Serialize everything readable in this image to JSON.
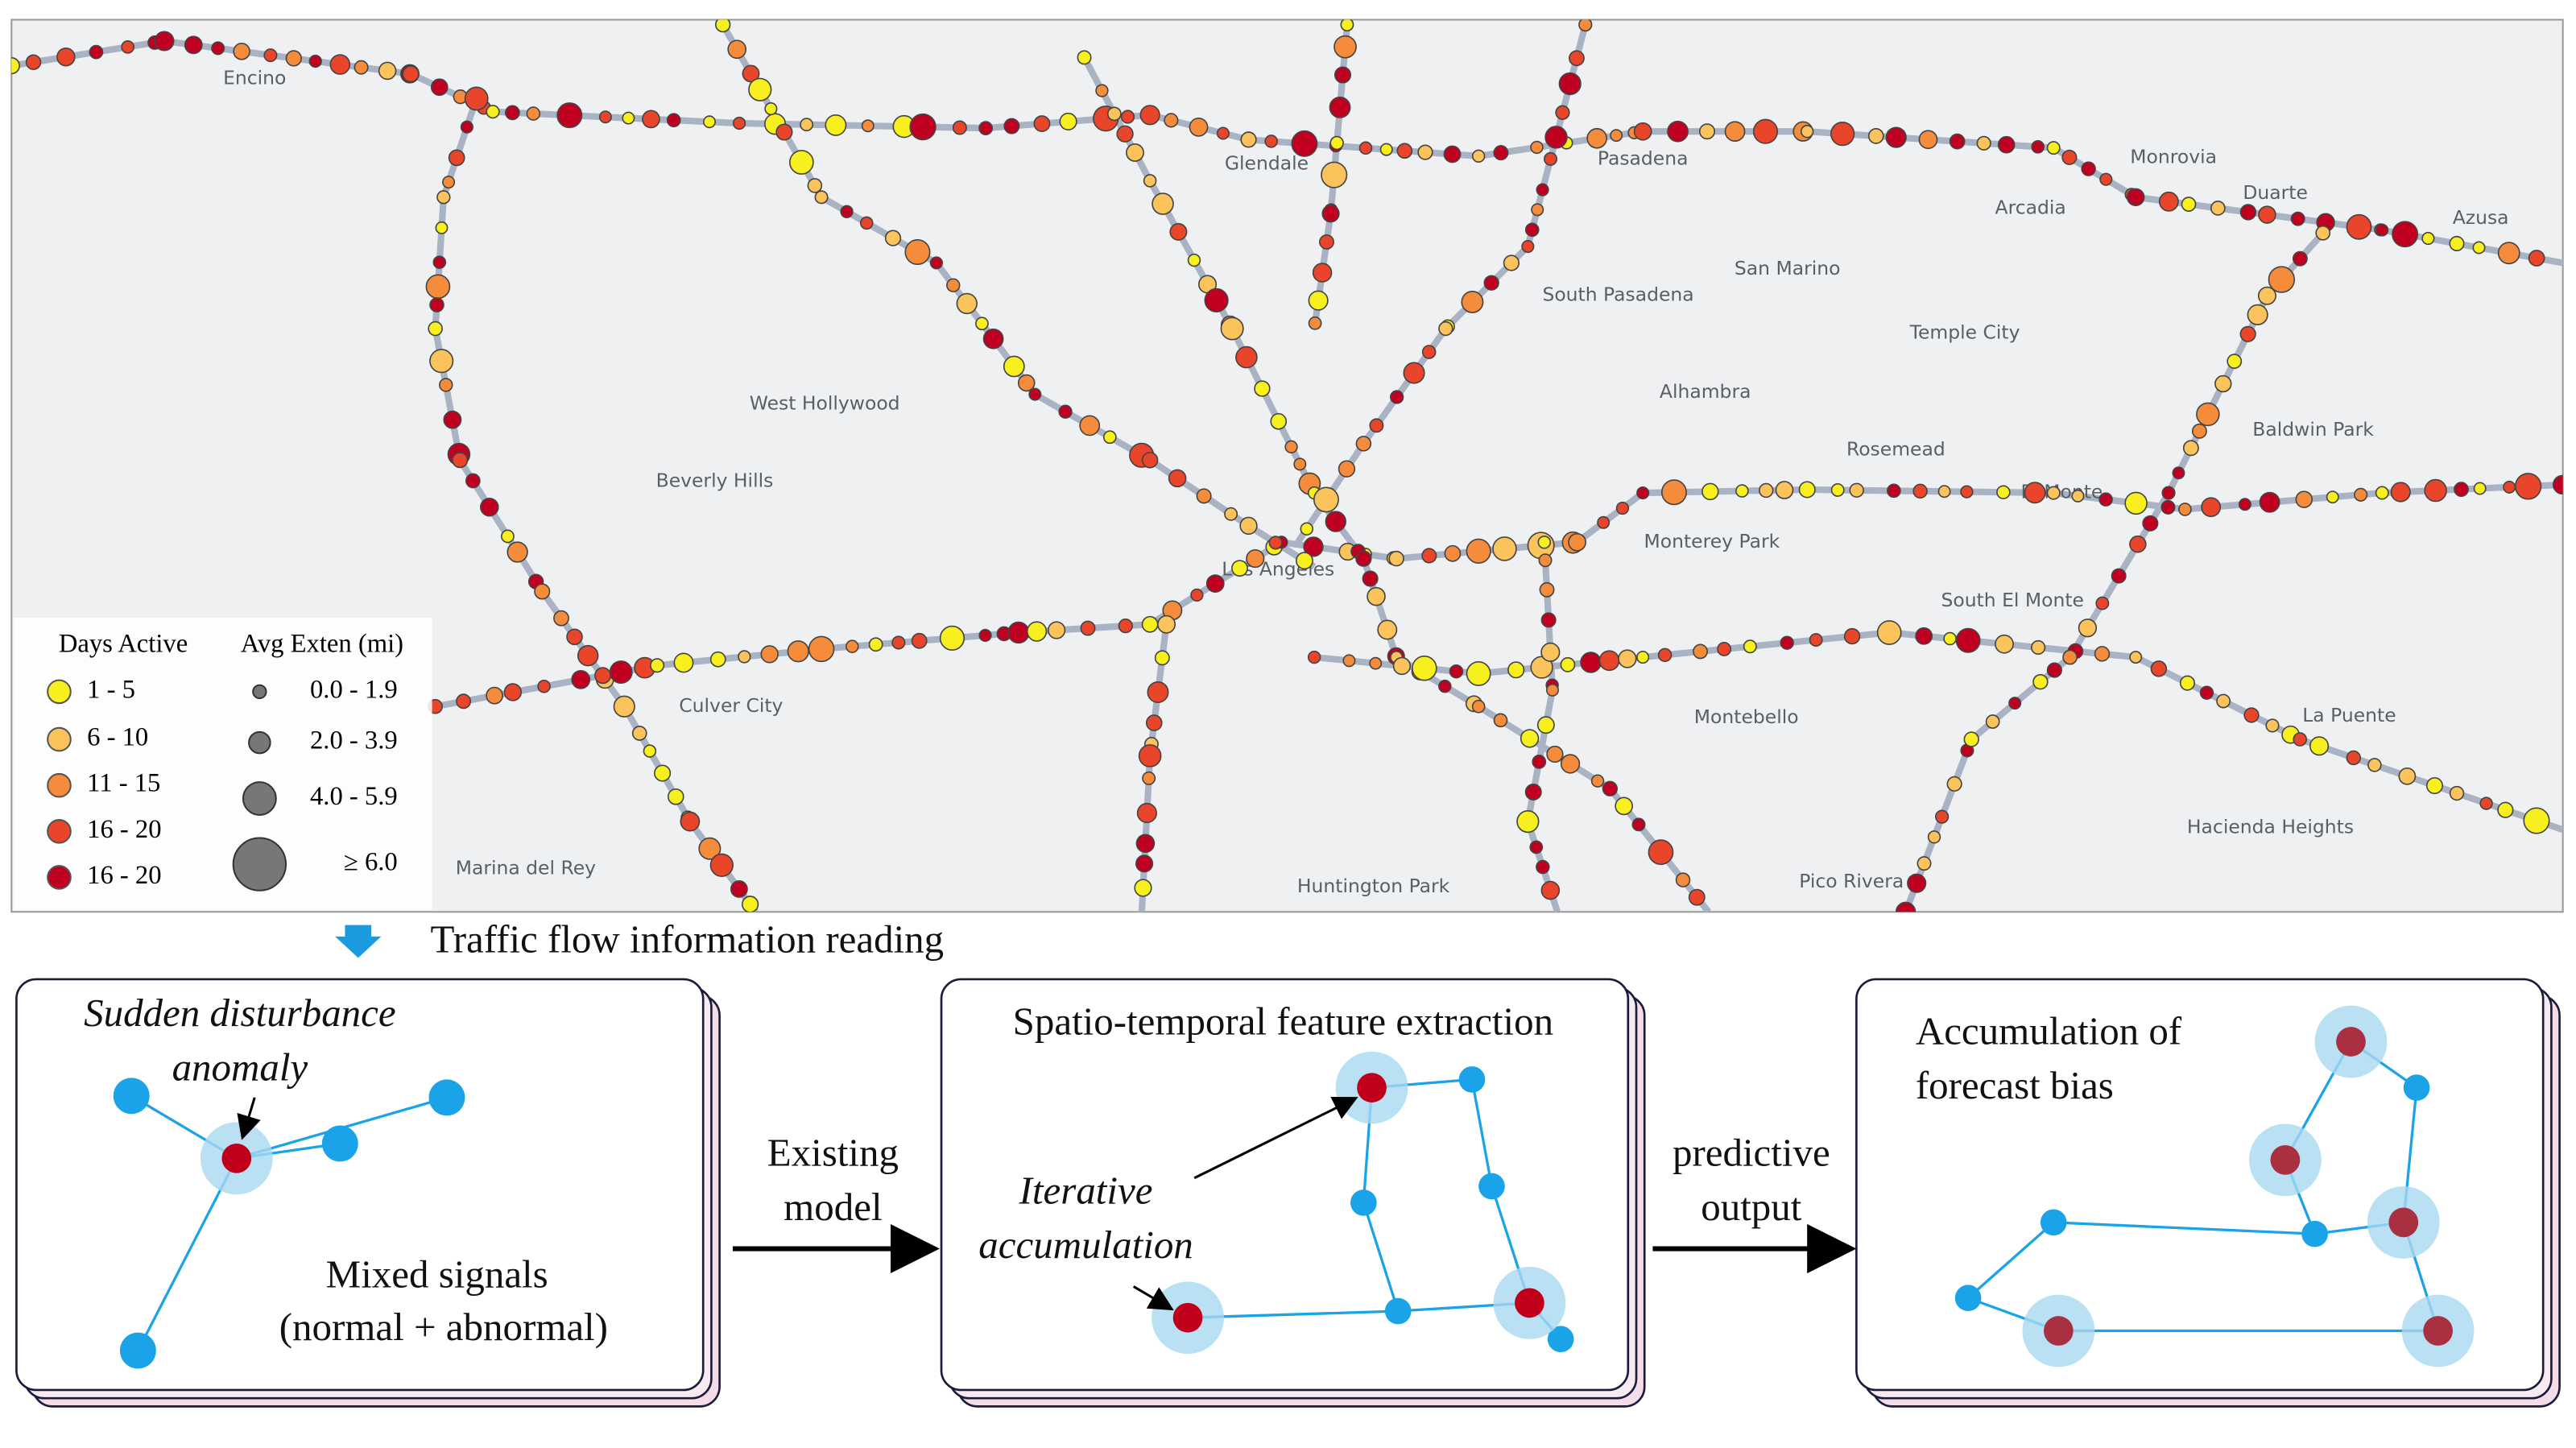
{
  "map": {
    "places": [
      "Encino",
      "Glendale",
      "Pasadena",
      "Monrovia",
      "Arcadia",
      "Duarte",
      "Azusa",
      "South Pasadena",
      "San Marino",
      "Temple City",
      "Alhambra",
      "West Hollywood",
      "Beverly Hills",
      "Rosemead",
      "Baldwin Park",
      "El Monte",
      "Monterey Park",
      "Los Angeles",
      "South El Monte",
      "Culver City",
      "Montebello",
      "La Puente",
      "Hacienda Heights",
      "Huntington Park",
      "Pico Rivera",
      "Marina del Rey"
    ],
    "legend": {
      "color_title": "Days Active",
      "color_items": [
        {
          "label": "1 - 5",
          "color": "#f7f01e"
        },
        {
          "label": "6 - 10",
          "color": "#fbc35c"
        },
        {
          "label": "11 - 15",
          "color": "#f58c3c"
        },
        {
          "label": "16 - 20",
          "color": "#e8452a"
        },
        {
          "label": "16 - 20",
          "color": "#c00020"
        }
      ],
      "size_title": "Avg Exten (mi)",
      "size_items": [
        "0.0 - 1.9",
        "2.0 - 3.9",
        "4.0 - 5.9",
        "≥ 6.0"
      ]
    }
  },
  "step_label": "Traffic flow information reading",
  "panels": [
    {
      "title": [
        "Sudden disturbance",
        "anomaly"
      ],
      "note": [
        "Mixed signals",
        "(normal + abnormal)"
      ]
    },
    {
      "title": [
        "Spatio-temporal feature extraction"
      ],
      "note": [
        "Iterative",
        "accumulation"
      ]
    },
    {
      "title": [
        "Accumulation of",
        "forecast bias"
      ]
    }
  ],
  "arrows": [
    [
      "Existing",
      "model"
    ],
    [
      "predictive",
      "output"
    ]
  ]
}
